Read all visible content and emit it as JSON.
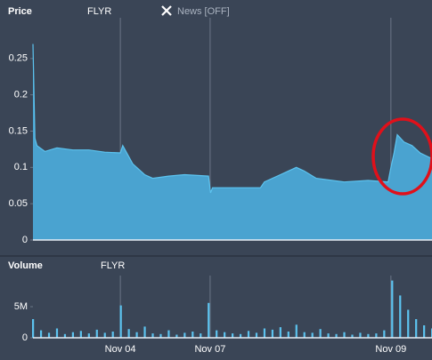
{
  "chart_data": [
    {
      "type": "area",
      "title": "Price",
      "symbol": "FLYR",
      "toggle": "News [OFF]",
      "color": "#4aa3d0",
      "line_color": "#5cc3ef",
      "x": [
        0,
        0.5,
        1,
        3,
        6,
        10,
        14,
        18,
        21.9,
        22.5,
        25,
        28,
        30,
        34,
        38,
        44,
        44.5,
        45,
        50,
        57,
        58,
        62,
        64,
        66,
        68,
        71,
        78,
        84,
        89,
        89.7,
        90.5,
        91.3,
        93,
        95,
        97,
        100
      ],
      "values": [
        0.27,
        0.14,
        0.13,
        0.122,
        0.127,
        0.124,
        0.124,
        0.121,
        0.12,
        0.13,
        0.105,
        0.09,
        0.085,
        0.088,
        0.09,
        0.088,
        0.065,
        0.072,
        0.072,
        0.072,
        0.08,
        0.09,
        0.095,
        0.1,
        0.095,
        0.085,
        0.08,
        0.082,
        0.08,
        0.1,
        0.12,
        0.145,
        0.135,
        0.13,
        0.12,
        0.112
      ],
      "xlim": [
        0,
        100
      ],
      "xticks": [
        {
          "value": 21.9,
          "label": "Nov 04"
        },
        {
          "value": 44.4,
          "label": "Nov 07"
        },
        {
          "value": 89.7,
          "label": "Nov 09"
        }
      ],
      "ylim": [
        0,
        0.3
      ],
      "yticks": [
        0,
        0.05,
        0.1,
        0.15,
        0.2,
        0.25
      ],
      "grid": true
    },
    {
      "type": "bar",
      "title": "Volume",
      "symbol": "FLYR",
      "color": "#5cc3ef",
      "x": [
        0,
        2,
        4,
        6,
        8,
        10,
        12,
        14,
        16,
        18,
        20,
        22,
        24,
        26,
        28,
        30,
        32,
        34,
        36,
        38,
        40,
        42,
        44,
        46,
        48,
        50,
        52,
        54,
        56,
        58,
        60,
        62,
        64,
        66,
        68,
        70,
        72,
        74,
        76,
        78,
        80,
        82,
        84,
        86,
        88,
        90,
        92,
        94,
        96,
        98,
        100
      ],
      "values": [
        3000000,
        1200000,
        800000,
        1500000,
        600000,
        900000,
        1100000,
        700000,
        1300000,
        800000,
        1000000,
        5200000,
        1400000,
        900000,
        1800000,
        700000,
        600000,
        1200000,
        500000,
        800000,
        1000000,
        700000,
        5600000,
        1200000,
        900000,
        700000,
        600000,
        1100000,
        800000,
        1500000,
        1300000,
        1700000,
        1000000,
        2100000,
        900000,
        800000,
        1400000,
        700000,
        600000,
        900000,
        500000,
        800000,
        600000,
        700000,
        1200000,
        9200000,
        6800000,
        4500000,
        3000000,
        2000000,
        1500000
      ],
      "xlim": [
        0,
        100
      ],
      "xticks": [
        {
          "value": 21.9,
          "label": "Nov 04"
        },
        {
          "value": 44.4,
          "label": "Nov 07"
        },
        {
          "value": 89.7,
          "label": "Nov 09"
        }
      ],
      "ylim": [
        0,
        10000000
      ],
      "yticks": [
        0,
        {
          "value": 5000000,
          "label": "5M"
        }
      ],
      "grid": true
    }
  ]
}
